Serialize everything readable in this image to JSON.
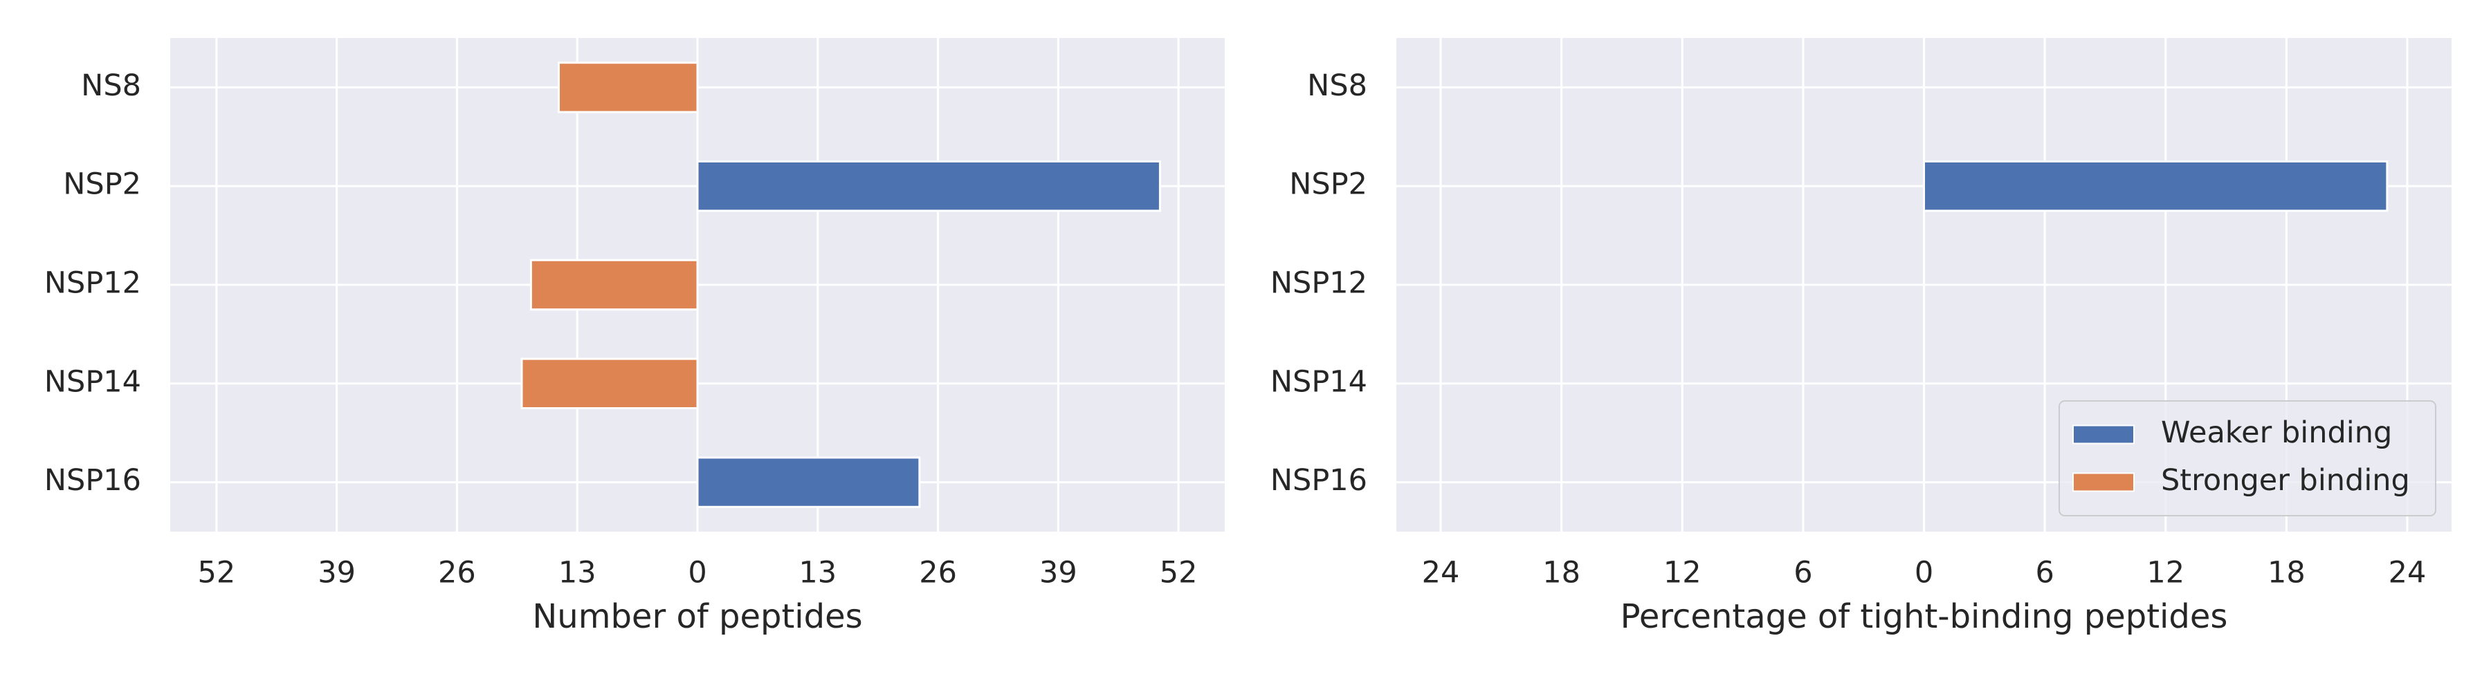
{
  "chart_data": [
    {
      "type": "bar",
      "orientation": "horizontal",
      "categories": [
        "NS8",
        "NSP2",
        "NSP12",
        "NSP14",
        "NSP16"
      ],
      "series": [
        {
          "name": "Weaker binding",
          "color": "#4c72b0",
          "values": [
            null,
            50,
            null,
            null,
            24
          ]
        },
        {
          "name": "Stronger binding",
          "color": "#dd8452",
          "values": [
            -15,
            null,
            -18,
            -19,
            null
          ]
        }
      ],
      "xlabel": "Number of peptides",
      "xlim": [
        -57,
        57
      ],
      "xticks": [
        {
          "value": -52,
          "label": "52"
        },
        {
          "value": -39,
          "label": "39"
        },
        {
          "value": -26,
          "label": "26"
        },
        {
          "value": -13,
          "label": "13"
        },
        0,
        13,
        26,
        39,
        52
      ],
      "grid": true,
      "legend": false
    },
    {
      "type": "bar",
      "orientation": "horizontal",
      "categories": [
        "NS8",
        "NSP2",
        "NSP12",
        "NSP14",
        "NSP16"
      ],
      "series": [
        {
          "name": "Weaker binding",
          "color": "#4c72b0",
          "values": [
            null,
            23,
            null,
            null,
            null
          ]
        },
        {
          "name": "Stronger binding",
          "color": "#dd8452",
          "values": [
            null,
            null,
            null,
            null,
            null
          ]
        }
      ],
      "xlabel": "Percentage of tight-binding peptides",
      "xlim": [
        -26.2,
        26.2
      ],
      "xticks": [
        {
          "value": -24,
          "label": "24"
        },
        {
          "value": -18,
          "label": "18"
        },
        {
          "value": -12,
          "label": "12"
        },
        {
          "value": -6,
          "label": "6"
        },
        0,
        6,
        12,
        18,
        24
      ],
      "grid": true,
      "legend": "lower right"
    }
  ]
}
